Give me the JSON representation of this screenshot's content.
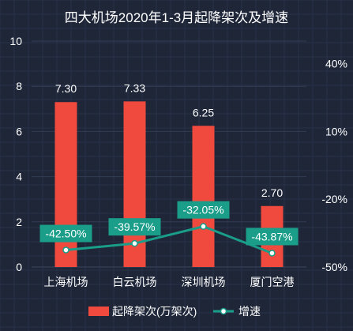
{
  "chart_data": {
    "type": "bar",
    "title": "四大机场2020年1-3月起降架次及增速",
    "categories": [
      "上海机场",
      "白云机场",
      "深圳机场",
      "厦门空港"
    ],
    "series": [
      {
        "name": "起降架次(万架次)",
        "type": "bar",
        "axis": "left",
        "values": [
          7.3,
          7.33,
          6.25,
          2.7
        ],
        "labels": [
          "7.30",
          "7.33",
          "6.25",
          "2.70"
        ],
        "color": "#f0493e"
      },
      {
        "name": "增速",
        "type": "line",
        "axis": "right",
        "values": [
          -42.5,
          -39.57,
          -32.05,
          -43.87
        ],
        "labels": [
          "-42.50%",
          "-39.57%",
          "-32.05%",
          "-43.87%"
        ],
        "color": "#1a9e8a"
      }
    ],
    "y_left": {
      "ylim": [
        0,
        10
      ],
      "ticks": [
        "0",
        "2",
        "4",
        "6",
        "8",
        "10"
      ]
    },
    "y_right": {
      "ylim": [
        -50,
        50
      ],
      "ticks": [
        "-50%",
        "-20%",
        "10%",
        "40%"
      ],
      "tick_values": [
        -50,
        -20,
        10,
        40
      ]
    },
    "grid": true,
    "legend_position": "bottom",
    "colors": {
      "background": "#1e2638",
      "grid": "#2c3548",
      "text": "#ffffff",
      "label_box": "#1a9e8a"
    }
  }
}
